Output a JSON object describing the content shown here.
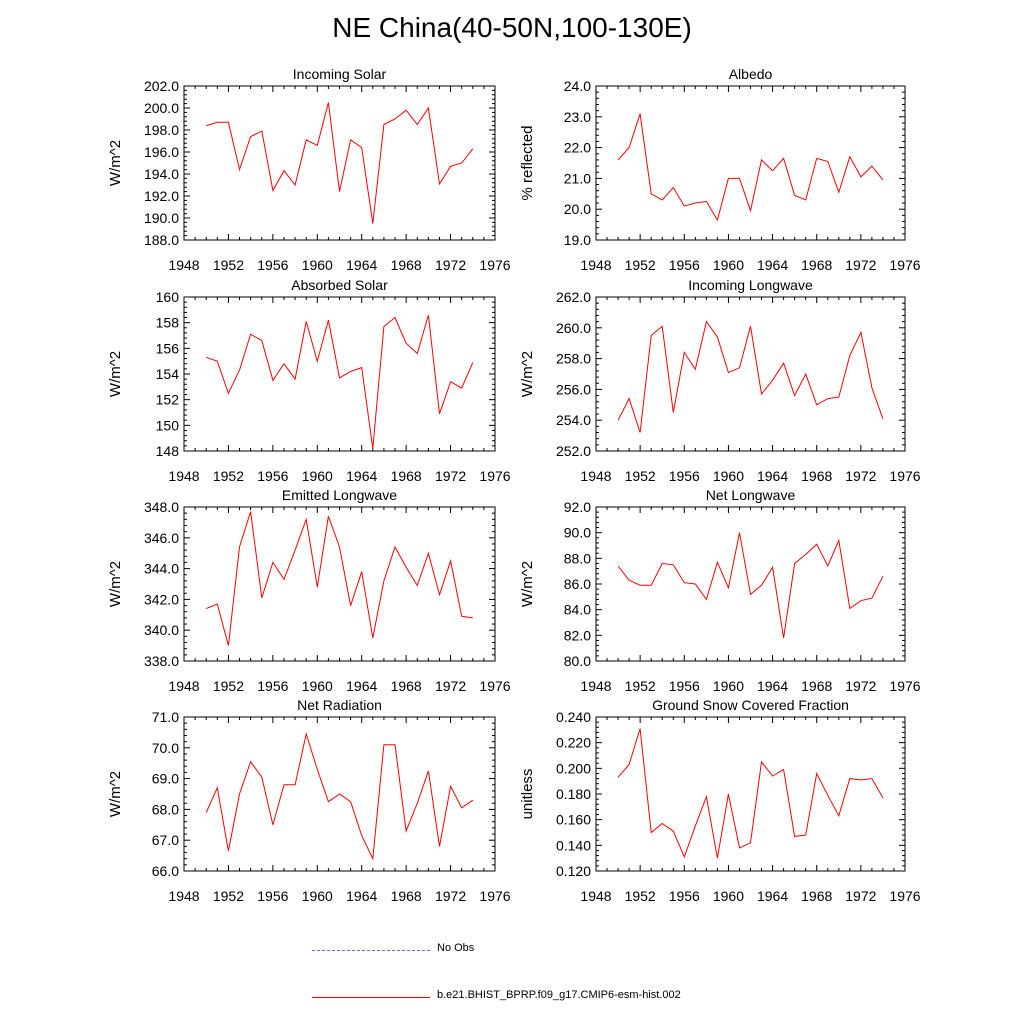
{
  "figure": {
    "title": "NE China(40-50N,100-130E)"
  },
  "legend": [
    {
      "label": "No Obs",
      "color": "#6a6ae0",
      "style": "dashed"
    },
    {
      "label": "b.e21.BHIST_BPRP.f09_g17.CMIP6-esm-hist.002",
      "color": "#ff0000",
      "style": "solid"
    }
  ],
  "chart_data": [
    {
      "type": "line",
      "title": "Incoming Solar",
      "ylabel": "W/m^2",
      "xlim": [
        1948,
        1976
      ],
      "ylim": [
        188.0,
        202.0
      ],
      "x_ticks": [
        1948,
        1952,
        1956,
        1960,
        1964,
        1968,
        1972,
        1976
      ],
      "y_ticks": [
        "188.0",
        "190.0",
        "192.0",
        "194.0",
        "196.0",
        "198.0",
        "200.0",
        "202.0"
      ],
      "color": "#ff0000",
      "x": [
        1950,
        1951,
        1952,
        1953,
        1954,
        1955,
        1956,
        1957,
        1958,
        1959,
        1960,
        1961,
        1962,
        1963,
        1964,
        1965,
        1966,
        1967,
        1968,
        1969,
        1970,
        1971,
        1972,
        1973,
        1974
      ],
      "values": [
        198.4,
        198.7,
        198.7,
        194.4,
        197.4,
        197.9,
        192.5,
        194.3,
        193.0,
        197.1,
        196.6,
        200.5,
        192.4,
        197.1,
        196.4,
        189.5,
        198.5,
        199.0,
        199.8,
        198.5,
        200.0,
        193.1,
        194.7,
        195.0,
        196.3
      ]
    },
    {
      "type": "line",
      "title": "Albedo",
      "ylabel": "% reflected",
      "xlim": [
        1948,
        1976
      ],
      "ylim": [
        19.0,
        24.0
      ],
      "x_ticks": [
        1948,
        1952,
        1956,
        1960,
        1964,
        1968,
        1972,
        1976
      ],
      "y_ticks": [
        "19.0",
        "20.0",
        "21.0",
        "22.0",
        "23.0",
        "24.0"
      ],
      "color": "#ff0000",
      "x": [
        1950,
        1951,
        1952,
        1953,
        1954,
        1955,
        1956,
        1957,
        1958,
        1959,
        1960,
        1961,
        1962,
        1963,
        1964,
        1965,
        1966,
        1967,
        1968,
        1969,
        1970,
        1971,
        1972,
        1973,
        1974
      ],
      "values": [
        21.6,
        22.0,
        23.1,
        20.5,
        20.3,
        20.7,
        20.1,
        20.2,
        20.25,
        19.65,
        21.0,
        21.0,
        19.95,
        21.6,
        21.25,
        21.65,
        20.45,
        20.3,
        21.65,
        21.55,
        20.55,
        21.7,
        21.05,
        21.4,
        20.95
      ]
    },
    {
      "type": "line",
      "title": "Absorbed Solar",
      "ylabel": "W/m^2",
      "xlim": [
        1948,
        1976
      ],
      "ylim": [
        148,
        160
      ],
      "x_ticks": [
        1948,
        1952,
        1956,
        1960,
        1964,
        1968,
        1972,
        1976
      ],
      "y_ticks": [
        "148",
        "150",
        "152",
        "154",
        "156",
        "158",
        "160"
      ],
      "color": "#ff0000",
      "x": [
        1950,
        1951,
        1952,
        1953,
        1954,
        1955,
        1956,
        1957,
        1958,
        1959,
        1960,
        1961,
        1962,
        1963,
        1964,
        1965,
        1966,
        1967,
        1968,
        1969,
        1970,
        1971,
        1972,
        1973,
        1974
      ],
      "values": [
        155.3,
        155.0,
        152.5,
        154.3,
        157.1,
        156.6,
        153.5,
        154.8,
        153.6,
        158.1,
        155.0,
        158.2,
        153.7,
        154.2,
        154.5,
        148.2,
        157.7,
        158.4,
        156.4,
        155.6,
        158.6,
        150.9,
        153.4,
        152.9,
        154.9
      ]
    },
    {
      "type": "line",
      "title": "Incoming Longwave",
      "ylabel": "W/m^2",
      "xlim": [
        1948,
        1976
      ],
      "ylim": [
        252.0,
        262.0
      ],
      "x_ticks": [
        1948,
        1952,
        1956,
        1960,
        1964,
        1968,
        1972,
        1976
      ],
      "y_ticks": [
        "252.0",
        "254.0",
        "256.0",
        "258.0",
        "260.0",
        "262.0"
      ],
      "color": "#ff0000",
      "x": [
        1950,
        1951,
        1952,
        1953,
        1954,
        1955,
        1956,
        1957,
        1958,
        1959,
        1960,
        1961,
        1962,
        1963,
        1964,
        1965,
        1966,
        1967,
        1968,
        1969,
        1970,
        1971,
        1972,
        1973,
        1974
      ],
      "values": [
        254.0,
        255.4,
        253.2,
        259.5,
        260.1,
        254.5,
        258.4,
        257.3,
        260.4,
        259.4,
        257.1,
        257.4,
        260.1,
        255.7,
        256.6,
        257.7,
        255.6,
        257.0,
        255.0,
        255.4,
        255.5,
        258.2,
        259.7,
        256.1,
        254.1
      ]
    },
    {
      "type": "line",
      "title": "Emitted Longwave",
      "ylabel": "W/m^2",
      "xlim": [
        1948,
        1976
      ],
      "ylim": [
        338.0,
        348.0
      ],
      "x_ticks": [
        1948,
        1952,
        1956,
        1960,
        1964,
        1968,
        1972,
        1976
      ],
      "y_ticks": [
        "338.0",
        "340.0",
        "342.0",
        "344.0",
        "346.0",
        "348.0"
      ],
      "color": "#ff0000",
      "x": [
        1950,
        1951,
        1952,
        1953,
        1954,
        1955,
        1956,
        1957,
        1958,
        1959,
        1960,
        1961,
        1962,
        1963,
        1964,
        1965,
        1966,
        1967,
        1968,
        1969,
        1970,
        1971,
        1972,
        1973,
        1974
      ],
      "values": [
        341.4,
        341.7,
        339.0,
        345.4,
        347.7,
        342.1,
        344.4,
        343.3,
        345.2,
        347.2,
        342.8,
        347.4,
        345.4,
        341.6,
        343.8,
        339.5,
        343.2,
        345.4,
        344.1,
        342.9,
        345.0,
        342.3,
        344.5,
        340.9,
        340.8
      ]
    },
    {
      "type": "line",
      "title": "Net Longwave",
      "ylabel": "W/m^2",
      "xlim": [
        1948,
        1976
      ],
      "ylim": [
        80.0,
        92.0
      ],
      "x_ticks": [
        1948,
        1952,
        1956,
        1960,
        1964,
        1968,
        1972,
        1976
      ],
      "y_ticks": [
        "80.0",
        "82.0",
        "84.0",
        "86.0",
        "88.0",
        "90.0",
        "92.0"
      ],
      "color": "#ff0000",
      "x": [
        1950,
        1951,
        1952,
        1953,
        1954,
        1955,
        1956,
        1957,
        1958,
        1959,
        1960,
        1961,
        1962,
        1963,
        1964,
        1965,
        1966,
        1967,
        1968,
        1969,
        1970,
        1971,
        1972,
        1973,
        1974
      ],
      "values": [
        87.4,
        86.3,
        85.9,
        85.9,
        87.6,
        87.5,
        86.1,
        86.0,
        84.8,
        87.7,
        85.7,
        90.0,
        85.2,
        85.9,
        87.3,
        81.8,
        87.6,
        88.3,
        89.1,
        87.4,
        89.4,
        84.1,
        84.7,
        84.9,
        86.6
      ]
    },
    {
      "type": "line",
      "title": "Net Radiation",
      "ylabel": "W/m^2",
      "xlim": [
        1948,
        1976
      ],
      "ylim": [
        66.0,
        71.0
      ],
      "x_ticks": [
        1948,
        1952,
        1956,
        1960,
        1964,
        1968,
        1972,
        1976
      ],
      "y_ticks": [
        "66.0",
        "67.0",
        "68.0",
        "69.0",
        "70.0",
        "71.0"
      ],
      "color": "#ff0000",
      "x": [
        1950,
        1951,
        1952,
        1953,
        1954,
        1955,
        1956,
        1957,
        1958,
        1959,
        1960,
        1961,
        1962,
        1963,
        1964,
        1965,
        1966,
        1967,
        1968,
        1969,
        1970,
        1971,
        1972,
        1973,
        1974
      ],
      "values": [
        67.9,
        68.7,
        66.65,
        68.5,
        69.55,
        69.05,
        67.5,
        68.8,
        68.8,
        70.45,
        69.3,
        68.25,
        68.5,
        68.25,
        67.15,
        66.4,
        70.1,
        70.1,
        67.3,
        68.2,
        69.25,
        66.8,
        68.75,
        68.05,
        68.3
      ]
    },
    {
      "type": "line",
      "title": "Ground Snow Covered Fraction",
      "ylabel": "unitless",
      "xlim": [
        1948,
        1976
      ],
      "ylim": [
        0.12,
        0.24
      ],
      "x_ticks": [
        1948,
        1952,
        1956,
        1960,
        1964,
        1968,
        1972,
        1976
      ],
      "y_ticks": [
        "0.120",
        "0.140",
        "0.160",
        "0.180",
        "0.200",
        "0.220",
        "0.240"
      ],
      "color": "#ff0000",
      "x": [
        1950,
        1951,
        1952,
        1953,
        1954,
        1955,
        1956,
        1957,
        1958,
        1959,
        1960,
        1961,
        1962,
        1963,
        1964,
        1965,
        1966,
        1967,
        1968,
        1969,
        1970,
        1971,
        1972,
        1973,
        1974
      ],
      "values": [
        0.193,
        0.203,
        0.231,
        0.15,
        0.157,
        0.151,
        0.131,
        0.155,
        0.178,
        0.13,
        0.18,
        0.138,
        0.142,
        0.205,
        0.194,
        0.199,
        0.147,
        0.148,
        0.196,
        0.179,
        0.163,
        0.192,
        0.191,
        0.192,
        0.177
      ]
    }
  ]
}
